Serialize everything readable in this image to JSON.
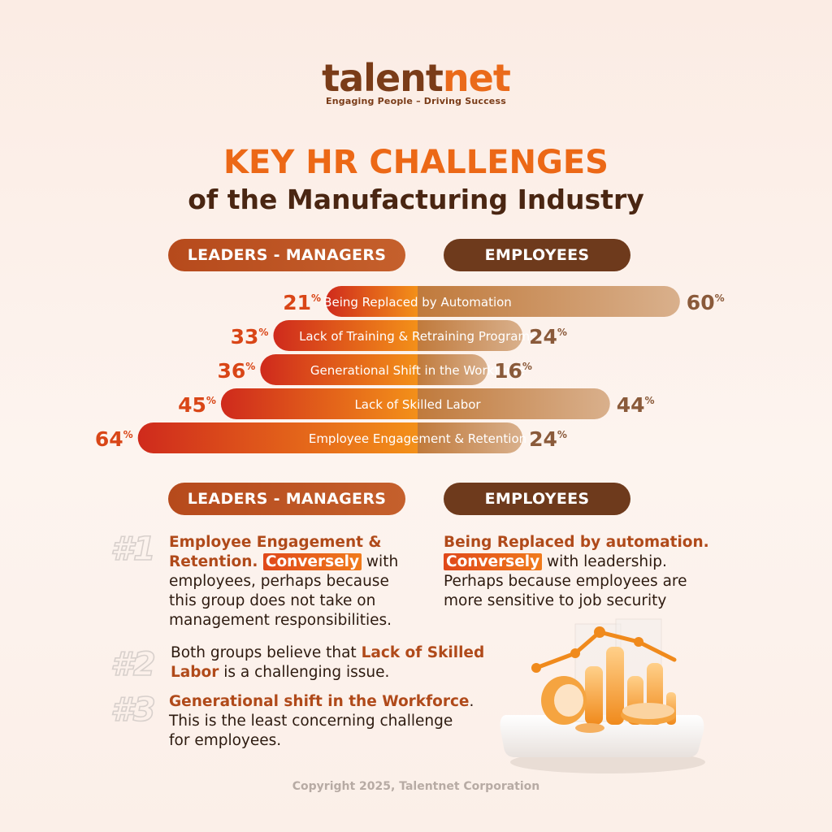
{
  "logo": {
    "text_a": "talent",
    "text_b": "net",
    "tagline": "Engaging People – Driving Success"
  },
  "title": {
    "line1": "KEY HR CHALLENGES",
    "line2": "of the Manufacturing Industry"
  },
  "headers": {
    "left": "LEADERS - MANAGERS",
    "right": "EMPLOYEES"
  },
  "colors": {
    "left_bar_start": "#cf2a1c",
    "left_bar_end": "#f39019",
    "right_bar_start": "#c07a3c",
    "right_bar_end": "#d9b08c",
    "left_value": "#d94617",
    "right_value": "#8a5a3a"
  },
  "chart_data": {
    "type": "bar",
    "orientation": "diverging-horizontal",
    "categories": [
      "Being Replaced by Automation",
      "Lack of Training & Retraining Programs",
      "Generational Shift in the Workforce",
      "Lack of Skilled Labor",
      "Employee Engagement & Retention"
    ],
    "series": [
      {
        "name": "LEADERS - MANAGERS",
        "values": [
          21,
          33,
          36,
          45,
          64
        ]
      },
      {
        "name": "EMPLOYEES",
        "values": [
          60,
          24,
          16,
          44,
          24
        ]
      }
    ],
    "unit": "%",
    "xlim": [
      0,
      70
    ]
  },
  "sections": {
    "lm": {
      "rank": "#1",
      "text": [
        {
          "t": "Employee Engagement & Retention. ",
          "hl": true
        },
        {
          "t": "Conversely",
          "badge": true
        },
        {
          "t": " with employees, perhaps because this group does not take on management responsibilities."
        }
      ]
    },
    "emp": {
      "text": [
        {
          "t": "Being Replaced by automation. ",
          "hl": true
        },
        {
          "t": "Conversely",
          "badge": true
        },
        {
          "t": " with leadership. Perhaps because employees are more sensitive to job security"
        }
      ]
    },
    "r2": {
      "rank": "#2",
      "text": [
        {
          "t": "Both groups believe that "
        },
        {
          "t": "Lack of Skilled Labor",
          "hl": true
        },
        {
          "t": " is a challenging issue."
        }
      ]
    },
    "r3": {
      "rank": "#3",
      "text": [
        {
          "t": "Generational shift in the Workforce",
          "hl": true
        },
        {
          "t": ". This is the least concerning challenge for employees."
        }
      ]
    }
  },
  "copyright": "Copyright 2025, Talentnet Corporation"
}
